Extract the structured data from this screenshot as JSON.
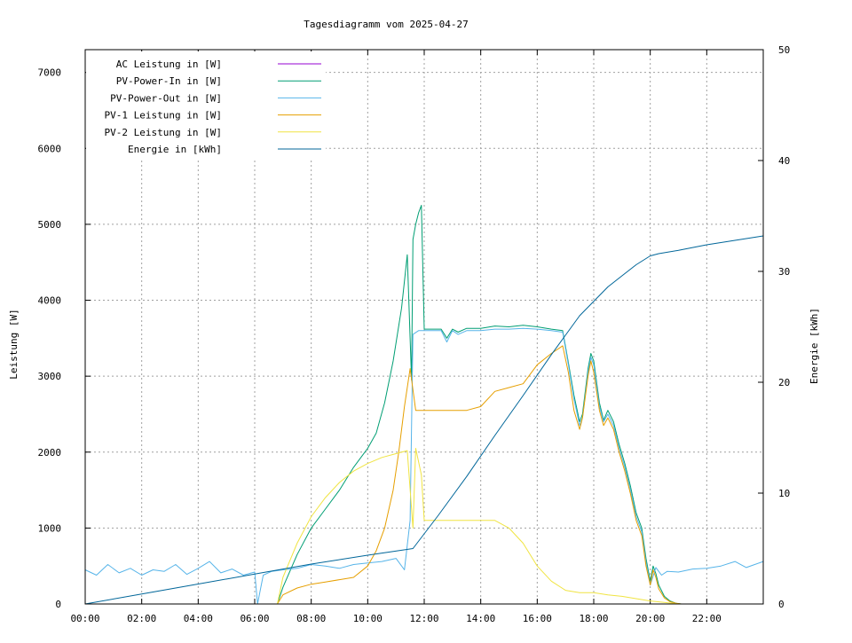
{
  "chart_data": {
    "type": "line",
    "title": "Tagesdiagramm vom 2025-04-27",
    "ylabel": "Leistung [W]",
    "y2label": "Energie [kWh]",
    "xlabel": "",
    "xlim": [
      0,
      24
    ],
    "ylim": [
      0,
      7300
    ],
    "y2lim": [
      0,
      50
    ],
    "grid": true,
    "legend_position": "top-left",
    "x_tick_labels": [
      "00:00",
      "02:00",
      "04:00",
      "06:00",
      "08:00",
      "10:00",
      "12:00",
      "14:00",
      "16:00",
      "18:00",
      "20:00",
      "22:00"
    ],
    "y_ticks": [
      0,
      1000,
      2000,
      3000,
      4000,
      5000,
      6000,
      7000
    ],
    "y2_ticks": [
      0,
      10,
      20,
      30,
      40,
      50
    ],
    "series": [
      {
        "name": "AC Leistung in [W]",
        "color": "#9400d3",
        "axis": "left",
        "x": [],
        "y": []
      },
      {
        "name": "PV-Power-In in [W]",
        "color": "#009e73",
        "axis": "left",
        "x": [
          6.8,
          7.0,
          7.5,
          8.0,
          8.5,
          9.0,
          9.5,
          10.0,
          10.3,
          10.6,
          10.9,
          11.2,
          11.4,
          11.55,
          11.6,
          11.7,
          11.8,
          11.9,
          12.0,
          12.2,
          12.6,
          12.8,
          13.0,
          13.2,
          13.5,
          14.0,
          14.5,
          15.0,
          15.5,
          16.0,
          16.5,
          16.9,
          17.1,
          17.3,
          17.5,
          17.6,
          17.8,
          17.9,
          18.0,
          18.2,
          18.35,
          18.5,
          18.7,
          18.9,
          19.1,
          19.3,
          19.5,
          19.7,
          19.85,
          20.0,
          20.1,
          20.2,
          20.3,
          20.5,
          20.7,
          20.9,
          21.1
        ],
        "y": [
          0,
          220,
          650,
          1000,
          1250,
          1500,
          1800,
          2050,
          2250,
          2650,
          3200,
          3900,
          4600,
          2950,
          4800,
          5000,
          5150,
          5250,
          3620,
          3620,
          3620,
          3500,
          3620,
          3580,
          3630,
          3630,
          3660,
          3650,
          3670,
          3650,
          3620,
          3600,
          3180,
          2750,
          2400,
          2500,
          3100,
          3300,
          3200,
          2650,
          2420,
          2550,
          2400,
          2100,
          1850,
          1550,
          1200,
          1000,
          600,
          300,
          500,
          400,
          250,
          100,
          40,
          10,
          0
        ]
      },
      {
        "name": "PV-Power-Out in [W]",
        "color": "#56b4e9",
        "axis": "left",
        "x": [
          0,
          0.4,
          0.8,
          1.2,
          1.6,
          2.0,
          2.4,
          2.8,
          3.2,
          3.6,
          4.0,
          4.4,
          4.8,
          5.2,
          5.6,
          6.0,
          6.1,
          6.3,
          6.6,
          7.0,
          7.5,
          8.0,
          8.5,
          9.0,
          9.5,
          10.0,
          10.5,
          11.0,
          11.3,
          11.5,
          11.6,
          11.8,
          12.0,
          12.2,
          12.6,
          12.8,
          13.0,
          13.2,
          13.5,
          14.0,
          14.5,
          15.0,
          15.5,
          16.0,
          16.5,
          16.9,
          17.1,
          17.3,
          17.5,
          17.6,
          17.8,
          17.9,
          18.0,
          18.2,
          18.35,
          18.5,
          18.7,
          18.9,
          19.1,
          19.3,
          19.5,
          19.7,
          19.85,
          20.0,
          20.2,
          20.4,
          20.6,
          21.0,
          21.5,
          22.0,
          22.5,
          23.0,
          23.4,
          23.7,
          24.0
        ],
        "y": [
          450,
          380,
          520,
          410,
          470,
          380,
          450,
          430,
          520,
          390,
          470,
          560,
          410,
          460,
          380,
          420,
          0,
          380,
          430,
          450,
          470,
          520,
          500,
          470,
          520,
          540,
          560,
          600,
          450,
          1100,
          3550,
          3600,
          3600,
          3600,
          3600,
          3450,
          3600,
          3550,
          3600,
          3600,
          3620,
          3620,
          3630,
          3620,
          3600,
          3580,
          3150,
          2700,
          2350,
          2450,
          3050,
          3250,
          3150,
          2600,
          2400,
          2500,
          2350,
          2050,
          1800,
          1500,
          1150,
          950,
          550,
          250,
          480,
          380,
          430,
          420,
          460,
          470,
          500,
          560,
          480,
          520,
          560
        ]
      },
      {
        "name": "PV-1 Leistung in [W]",
        "color": "#e69f00",
        "axis": "left",
        "x": [
          6.8,
          7.0,
          7.5,
          8.0,
          8.5,
          9.0,
          9.5,
          10.0,
          10.3,
          10.6,
          10.9,
          11.1,
          11.3,
          11.5,
          11.7,
          12.0,
          12.5,
          12.8,
          13.0,
          13.2,
          13.5,
          14.0,
          14.5,
          15.0,
          15.5,
          16.0,
          16.5,
          16.9,
          17.1,
          17.3,
          17.5,
          17.6,
          17.8,
          17.9,
          18.0,
          18.2,
          18.35,
          18.5,
          18.7,
          18.9,
          19.1,
          19.3,
          19.5,
          19.7,
          19.85,
          20.0,
          20.1,
          20.2,
          20.3,
          20.5,
          20.7,
          20.9,
          21.1
        ],
        "y": [
          0,
          120,
          210,
          260,
          290,
          320,
          350,
          500,
          700,
          1000,
          1500,
          2000,
          2600,
          3100,
          2550,
          2550,
          2550,
          2550,
          2550,
          2550,
          2550,
          2600,
          2800,
          2850,
          2900,
          3150,
          3300,
          3400,
          3050,
          2550,
          2300,
          2450,
          3000,
          3200,
          3050,
          2550,
          2350,
          2450,
          2300,
          2000,
          1750,
          1450,
          1100,
          900,
          500,
          250,
          450,
          350,
          200,
          80,
          30,
          10,
          0
        ]
      },
      {
        "name": "PV-2 Leistung in [W]",
        "color": "#f0e442",
        "axis": "left",
        "x": [
          6.8,
          7.0,
          7.5,
          8.0,
          8.5,
          9.0,
          9.5,
          10.0,
          10.5,
          11.0,
          11.4,
          11.6,
          11.7,
          11.9,
          12.0,
          12.5,
          13.0,
          13.3,
          13.5,
          14.0,
          14.5,
          15.0,
          15.5,
          16.0,
          16.5,
          17.0,
          17.5,
          18.0,
          18.5,
          19.0,
          19.5,
          20.0,
          20.5,
          21.0
        ],
        "y": [
          0,
          350,
          800,
          1150,
          1400,
          1600,
          1750,
          1850,
          1930,
          1980,
          2020,
          1000,
          2050,
          1700,
          1100,
          1100,
          1100,
          1100,
          1100,
          1100,
          1100,
          1000,
          800,
          500,
          300,
          180,
          150,
          150,
          120,
          100,
          70,
          40,
          20,
          0
        ]
      },
      {
        "name": "Energie in [kWh]",
        "color": "#006699",
        "axis": "right",
        "x": [
          0,
          2,
          4,
          6,
          8,
          10,
          11.6,
          12.5,
          13.5,
          14.5,
          15.5,
          16.5,
          17.5,
          18.5,
          19.0,
          19.5,
          20.0,
          20.3,
          21,
          22,
          23,
          24
        ],
        "y": [
          0,
          0.9,
          1.8,
          2.7,
          3.6,
          4.4,
          5.0,
          8.0,
          11.5,
          15.2,
          18.8,
          22.5,
          26.0,
          28.6,
          29.6,
          30.6,
          31.4,
          31.6,
          31.9,
          32.4,
          32.8,
          33.2
        ]
      }
    ]
  }
}
